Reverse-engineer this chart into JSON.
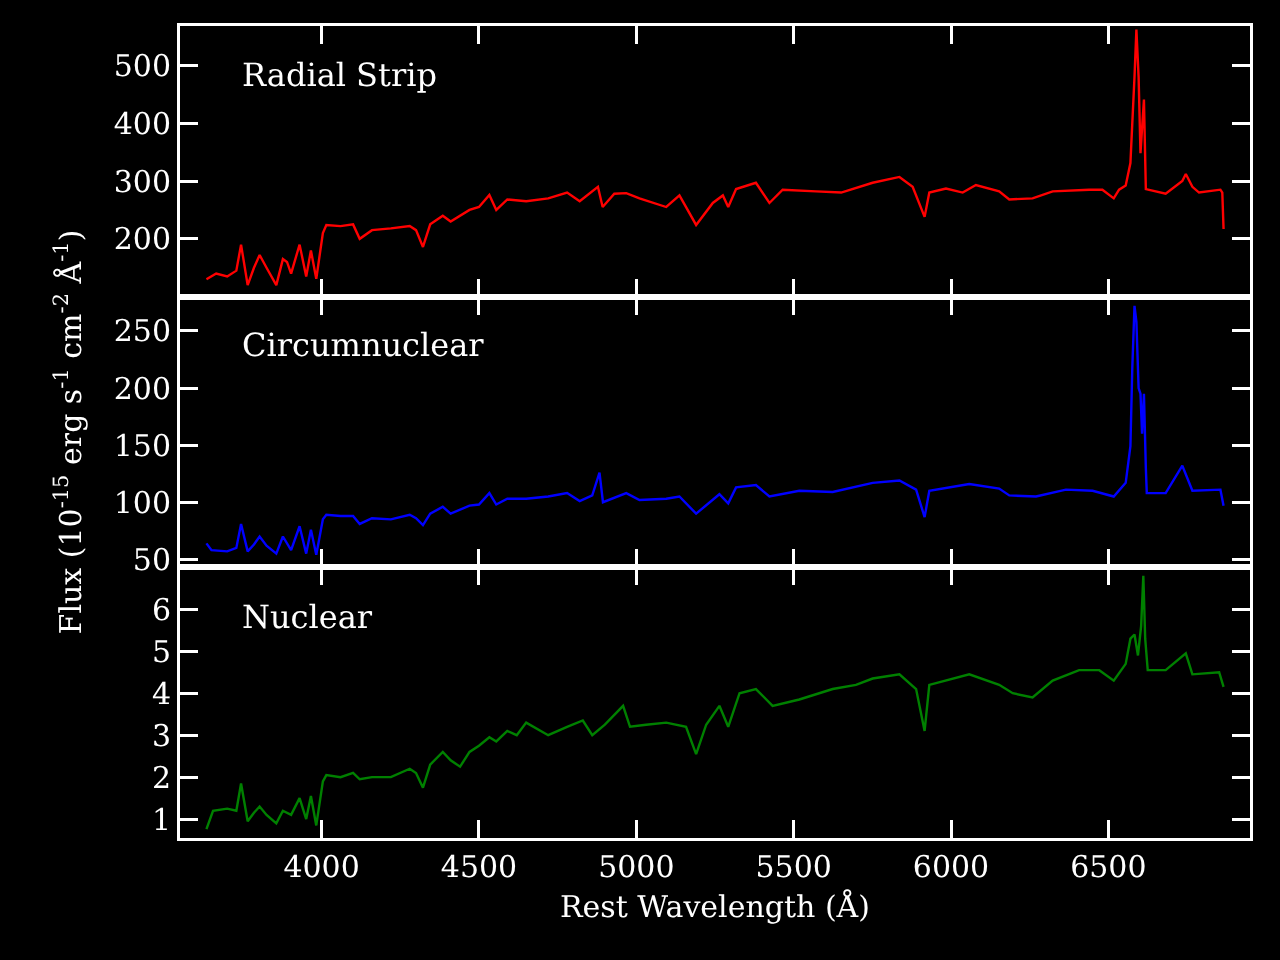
{
  "chart_data": [
    {
      "type": "line",
      "title": "Radial Strip",
      "xlim": [
        3550,
        6950
      ],
      "xticks": [
        4000,
        4500,
        5000,
        5500,
        6000,
        6500
      ],
      "ylim": [
        100,
        568
      ],
      "yticks": [
        200,
        300,
        400,
        500
      ],
      "tick_labels": "y",
      "x": [
        3634,
        3665,
        3700,
        3729,
        3744,
        3765,
        3785,
        3803,
        3825,
        3856,
        3877,
        3890,
        3903,
        3930,
        3951,
        3966,
        3983,
        4004,
        4015,
        4060,
        4100,
        4121,
        4160,
        4220,
        4280,
        4300,
        4322,
        4345,
        4385,
        4410,
        4470,
        4500,
        4533,
        4555,
        4590,
        4650,
        4720,
        4780,
        4820,
        4878,
        4893,
        4930,
        4968,
        5010,
        5095,
        5137,
        5190,
        5243,
        5275,
        5292,
        5317,
        5380,
        5423,
        5465,
        5571,
        5651,
        5751,
        5836,
        5878,
        5916,
        5931,
        5984,
        6037,
        6079,
        6153,
        6185,
        6259,
        6323,
        6439,
        6481,
        6517,
        6534,
        6555,
        6570,
        6576,
        6583,
        6589,
        6596,
        6602,
        6613,
        6619,
        6682,
        6735,
        6746,
        6767,
        6788,
        6856,
        6862,
        6866
      ],
      "series": [
        {
          "color": "#ff0000",
          "values": [
            130,
            140,
            135,
            145,
            190,
            120,
            150,
            172,
            150,
            120,
            165,
            160,
            140,
            190,
            135,
            180,
            131,
            210,
            224,
            222,
            225,
            200,
            215,
            218,
            222,
            215,
            186,
            225,
            240,
            230,
            250,
            255,
            276,
            250,
            268,
            265,
            270,
            280,
            265,
            290,
            255,
            278,
            279,
            270,
            255,
            275,
            224,
            262,
            275,
            255,
            286,
            297,
            262,
            285,
            282,
            280,
            297,
            307,
            290,
            238,
            280,
            287,
            280,
            293,
            282,
            268,
            270,
            282,
            285,
            285,
            270,
            285,
            292,
            331,
            400,
            480,
            562,
            480,
            348,
            441,
            286,
            278,
            300,
            312,
            290,
            280,
            285,
            280,
            217
          ]
        }
      ]
    },
    {
      "type": "line",
      "title": "Circumnuclear",
      "ylabel": "Flux (10$^{-15}$ erg s$^{-1}$ cm$^{-2}$ Å$^{-1}$)",
      "xlim": [
        3550,
        6950
      ],
      "xticks": [
        4000,
        4500,
        5000,
        5500,
        6000,
        6500
      ],
      "ylim": [
        43,
        280
      ],
      "yticks": [
        50,
        100,
        150,
        200,
        250
      ],
      "tick_labels": "y",
      "x": [
        3634,
        3650,
        3700,
        3729,
        3744,
        3765,
        3785,
        3803,
        3825,
        3856,
        3877,
        3903,
        3930,
        3951,
        3966,
        3983,
        4004,
        4015,
        4060,
        4100,
        4121,
        4160,
        4220,
        4280,
        4300,
        4322,
        4345,
        4385,
        4410,
        4470,
        4500,
        4533,
        4555,
        4590,
        4650,
        4720,
        4780,
        4820,
        4860,
        4883,
        4894,
        4968,
        5010,
        5095,
        5137,
        5190,
        5264,
        5292,
        5317,
        5380,
        5423,
        5518,
        5624,
        5751,
        5836,
        5889,
        5916,
        5931,
        6058,
        6153,
        6185,
        6270,
        6365,
        6450,
        6517,
        6555,
        6570,
        6576,
        6583,
        6589,
        6596,
        6602,
        6607,
        6613,
        6619,
        6622,
        6682,
        6735,
        6767,
        6856,
        6866
      ],
      "series": [
        {
          "color": "#0000ff",
          "values": [
            64,
            58,
            57,
            60,
            81,
            57,
            63,
            70,
            62,
            55,
            70,
            58,
            79,
            55,
            76,
            54,
            85,
            89,
            88,
            88,
            81,
            86,
            85,
            89,
            86,
            80,
            90,
            96,
            90,
            97,
            98,
            108,
            98,
            103,
            103,
            105,
            108,
            101,
            106,
            126,
            100,
            108,
            102,
            103,
            105,
            90,
            107,
            99,
            113,
            115,
            105,
            110,
            109,
            117,
            119,
            111,
            87,
            110,
            116,
            112,
            106,
            105,
            111,
            110,
            105,
            117,
            149,
            218,
            272,
            258,
            200,
            195,
            160,
            195,
            130,
            108,
            108,
            132,
            110,
            111,
            97
          ]
        }
      ]
    },
    {
      "type": "line",
      "title": "Nuclear",
      "xlabel": "Rest Wavelength (Å)",
      "xlim": [
        3550,
        6950
      ],
      "xticks": [
        4000,
        4500,
        5000,
        5500,
        6000,
        6500
      ],
      "ylim": [
        0.55,
        7
      ],
      "yticks": [
        1,
        2,
        3,
        4,
        5,
        6
      ],
      "x": [
        3634,
        3655,
        3700,
        3729,
        3744,
        3765,
        3785,
        3803,
        3825,
        3856,
        3877,
        3903,
        3930,
        3951,
        3966,
        3983,
        4004,
        4015,
        4060,
        4100,
        4121,
        4160,
        4220,
        4280,
        4300,
        4322,
        4345,
        4385,
        4410,
        4440,
        4470,
        4500,
        4533,
        4555,
        4590,
        4620,
        4650,
        4720,
        4780,
        4830,
        4860,
        4900,
        4958,
        4980,
        5031,
        5095,
        5158,
        5190,
        5222,
        5264,
        5292,
        5328,
        5380,
        5433,
        5518,
        5624,
        5698,
        5751,
        5836,
        5889,
        5916,
        5931,
        6058,
        6153,
        6196,
        6259,
        6323,
        6407,
        6471,
        6517,
        6555,
        6570,
        6583,
        6594,
        6604,
        6611,
        6617,
        6625,
        6682,
        6746,
        6767,
        6852,
        6866
      ],
      "series": [
        {
          "color": "#008000",
          "values": [
            0.76,
            1.2,
            1.25,
            1.2,
            1.85,
            0.95,
            1.15,
            1.3,
            1.1,
            0.9,
            1.2,
            1.1,
            1.5,
            1.0,
            1.55,
            0.85,
            1.9,
            2.05,
            2.0,
            2.1,
            1.95,
            2.0,
            2.0,
            2.2,
            2.1,
            1.75,
            2.3,
            2.6,
            2.4,
            2.25,
            2.6,
            2.75,
            2.95,
            2.85,
            3.1,
            3.0,
            3.3,
            3.0,
            3.2,
            3.35,
            3.0,
            3.25,
            3.7,
            3.2,
            3.25,
            3.3,
            3.2,
            2.55,
            3.25,
            3.7,
            3.2,
            4.0,
            4.1,
            3.7,
            3.85,
            4.1,
            4.2,
            4.35,
            4.45,
            4.1,
            3.1,
            4.2,
            4.45,
            4.2,
            4.0,
            3.9,
            4.3,
            4.55,
            4.55,
            4.3,
            4.7,
            5.3,
            5.4,
            4.9,
            5.6,
            6.8,
            5.3,
            4.55,
            4.55,
            4.95,
            4.45,
            4.5,
            4.15
          ]
        }
      ]
    }
  ]
}
